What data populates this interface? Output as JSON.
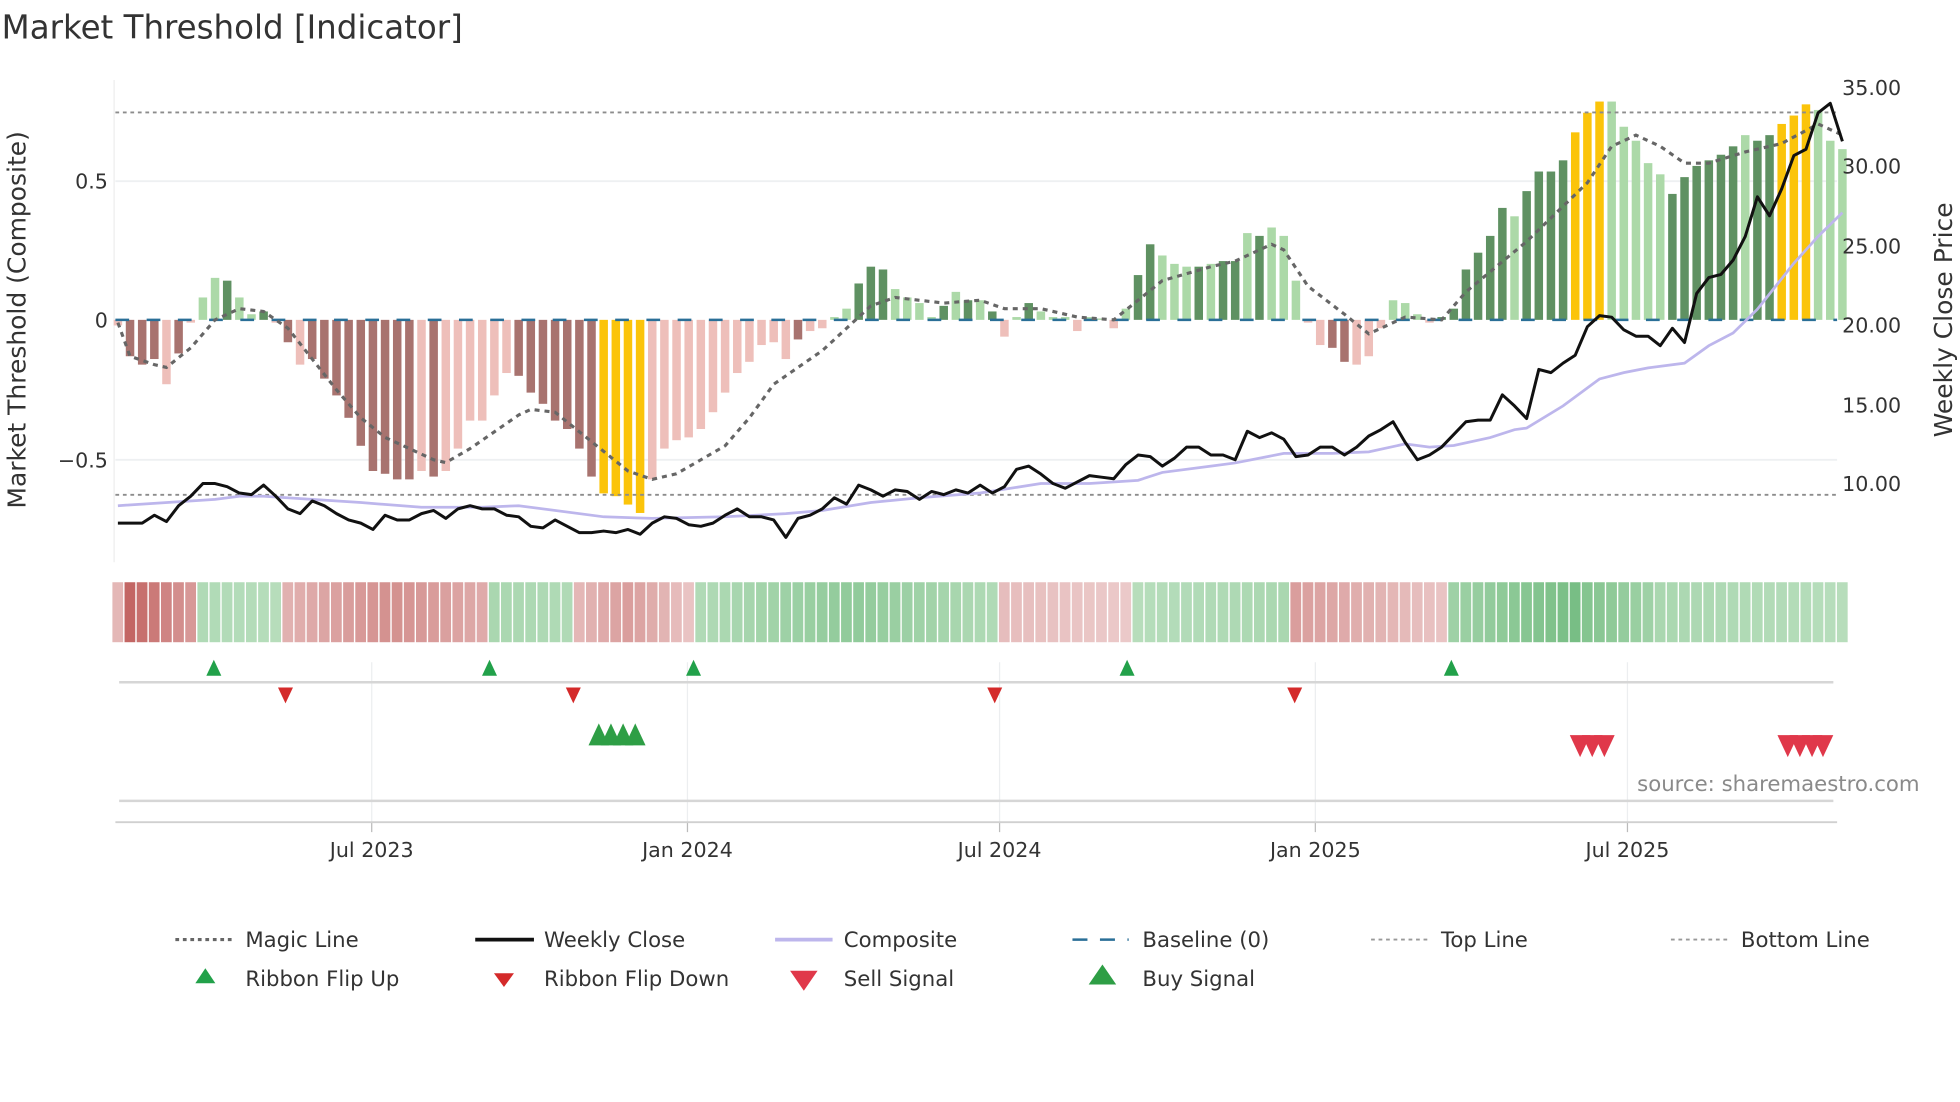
{
  "title": "Market Threshold [Indicator]",
  "source": "source: sharemaestro.com",
  "chart_data": {
    "type": "bar",
    "title": "Market Threshold [Indicator]",
    "ylabel_left": "Market Threshold (Composite)",
    "ylabel_right": "Weekly Close Price",
    "ylim_left": [
      -0.85,
      0.83
    ],
    "ylim_right": [
      4.4,
      36.6
    ],
    "left_ticks": [
      {
        "v": 0.5,
        "label": "0.5"
      },
      {
        "v": 0,
        "label": "0"
      },
      {
        "v": -0.5,
        "label": "−0.5"
      }
    ],
    "right_ticks": [
      {
        "v": 35,
        "label": "35.00"
      },
      {
        "v": 30,
        "label": "30.00"
      },
      {
        "v": 25,
        "label": "25.00"
      },
      {
        "v": 20,
        "label": "20.00"
      },
      {
        "v": 15,
        "label": "15.00"
      },
      {
        "v": 10,
        "label": "10.00"
      }
    ],
    "x_ticks": [
      {
        "week": 20.9,
        "label": "Jul 2023"
      },
      {
        "week": 46.9,
        "label": "Jan 2024"
      },
      {
        "week": 72.6,
        "label": "Jul 2024"
      },
      {
        "week": 98.6,
        "label": "Jan 2025"
      },
      {
        "week": 124.3,
        "label": "Jul 2025"
      }
    ],
    "top_line": 0.74,
    "bottom_line": -0.625,
    "baseline": 0,
    "colors": {
      "neg_dark": "#a8736f",
      "neg_light": "#eebfba",
      "pos_dark": "#5f9162",
      "pos_light": "#acd9a8",
      "peak": "#fbc40a",
      "magic": "#666666",
      "close": "#111111",
      "composite": "#bdb6ec",
      "baseline": "#2a6f97",
      "threshold": "#8c8c8c",
      "flip_up": "#22a14a",
      "flip_down": "#d42a2a",
      "buy": "#2e9e45",
      "sell": "#e0384a"
    },
    "bars": [
      -0.02,
      -0.13,
      -0.16,
      -0.14,
      -0.23,
      -0.12,
      -0.01,
      0.08,
      0.15,
      0.14,
      0.08,
      0.02,
      0.03,
      -0.01,
      -0.08,
      -0.16,
      -0.14,
      -0.21,
      -0.27,
      -0.35,
      -0.45,
      -0.54,
      -0.55,
      -0.57,
      -0.57,
      -0.54,
      -0.56,
      -0.54,
      -0.46,
      -0.36,
      -0.36,
      -0.27,
      -0.19,
      -0.2,
      -0.26,
      -0.3,
      -0.36,
      -0.39,
      -0.46,
      -0.56,
      -0.62,
      -0.63,
      -0.66,
      -0.69,
      -0.57,
      -0.46,
      -0.43,
      -0.42,
      -0.39,
      -0.33,
      -0.26,
      -0.19,
      -0.15,
      -0.09,
      -0.08,
      -0.14,
      -0.07,
      -0.04,
      -0.03,
      0.01,
      0.04,
      0.13,
      0.19,
      0.18,
      0.11,
      0.08,
      0.06,
      0.01,
      0.05,
      0.1,
      0.07,
      0.07,
      0.03,
      -0.06,
      0.01,
      0.06,
      0.03,
      0.01,
      0.01,
      -0.04,
      0.01,
      0.005,
      -0.03,
      0.04,
      0.16,
      0.27,
      0.23,
      0.2,
      0.19,
      0.19,
      0.2,
      0.21,
      0.21,
      0.31,
      0.3,
      0.33,
      0.3,
      0.14,
      -0.01,
      -0.09,
      -0.1,
      -0.15,
      -0.16,
      -0.13,
      -0.03,
      0.07,
      0.06,
      0.02,
      -0.01,
      0.01,
      0.04,
      0.18,
      0.24,
      0.3,
      0.4,
      0.37,
      0.46,
      0.53,
      0.53,
      0.57,
      0.67,
      0.74,
      0.78,
      0.78,
      0.69,
      0.64,
      0.56,
      0.52,
      0.45,
      0.51,
      0.55,
      0.57,
      0.59,
      0.62,
      0.66,
      0.64,
      0.66,
      0.7,
      0.73,
      0.77,
      0.75,
      0.64,
      0.61
    ],
    "bar_tone": "ldddldllldlldldldddddddddldlllllldddddddyyyylllllllllllldlllldddlllldldldlldllllllllddllldlddldlllllddlllllllddddddlddddyyylllllddddddlddyyyll",
    "weekly_close": [
      7.5,
      7.5,
      7.5,
      8.0,
      7.6,
      8.6,
      9.2,
      10.0,
      10.0,
      9.8,
      9.4,
      9.3,
      9.9,
      9.2,
      8.4,
      8.1,
      8.9,
      8.6,
      8.1,
      7.7,
      7.5,
      7.1,
      8.0,
      7.7,
      7.7,
      8.1,
      8.3,
      7.8,
      8.4,
      8.6,
      8.4,
      8.4,
      8.0,
      7.9,
      7.3,
      7.2,
      7.7,
      7.3,
      6.9,
      6.9,
      7.0,
      6.9,
      7.1,
      6.8,
      7.5,
      7.9,
      7.8,
      7.4,
      7.3,
      7.5,
      8.0,
      8.4,
      7.9,
      7.9,
      7.7,
      6.6,
      7.8,
      8.0,
      8.4,
      9.1,
      8.7,
      9.9,
      9.6,
      9.2,
      9.6,
      9.5,
      9.0,
      9.5,
      9.3,
      9.6,
      9.4,
      9.9,
      9.4,
      9.8,
      10.9,
      11.1,
      10.6,
      10.0,
      9.7,
      10.1,
      10.5,
      10.4,
      10.3,
      11.2,
      11.8,
      11.7,
      11.1,
      11.6,
      12.3,
      12.3,
      11.8,
      11.8,
      11.5,
      13.3,
      12.9,
      13.2,
      12.8,
      11.7,
      11.8,
      12.3,
      12.3,
      11.8,
      12.3,
      13.0,
      13.4,
      13.9,
      12.6,
      11.5,
      11.8,
      12.3,
      13.1,
      13.9,
      14.0,
      14.0,
      15.6,
      14.9,
      14.1,
      17.2,
      17.0,
      17.6,
      18.1,
      19.9,
      20.6,
      20.5,
      19.7,
      19.3,
      19.3,
      18.7,
      19.8,
      18.9,
      22.0,
      23.0,
      23.2,
      24.1,
      25.6,
      28.1,
      26.9,
      28.6,
      30.7,
      31.1,
      33.4,
      34.0,
      31.6
    ],
    "composite_line": [
      [
        0,
        8.6
      ],
      [
        8,
        9.0
      ],
      [
        10,
        9.2
      ],
      [
        12,
        9.2
      ],
      [
        20,
        8.8
      ],
      [
        25,
        8.5
      ],
      [
        30,
        8.5
      ],
      [
        33,
        8.6
      ],
      [
        40,
        7.9
      ],
      [
        44,
        7.8
      ],
      [
        50,
        7.9
      ],
      [
        55,
        8.1
      ],
      [
        58,
        8.3
      ],
      [
        62,
        8.8
      ],
      [
        66,
        9.1
      ],
      [
        71,
        9.4
      ],
      [
        76,
        10.0
      ],
      [
        80,
        10.0
      ],
      [
        84,
        10.2
      ],
      [
        86,
        10.7
      ],
      [
        90,
        11.1
      ],
      [
        92,
        11.3
      ],
      [
        96,
        11.9
      ],
      [
        100,
        11.9
      ],
      [
        103,
        12.0
      ],
      [
        106,
        12.5
      ],
      [
        108,
        12.3
      ],
      [
        110,
        12.4
      ],
      [
        113,
        12.9
      ],
      [
        115,
        13.4
      ],
      [
        116,
        13.5
      ],
      [
        119,
        14.9
      ],
      [
        122,
        16.6
      ],
      [
        124,
        17.0
      ],
      [
        126,
        17.3
      ],
      [
        129,
        17.6
      ],
      [
        131,
        18.7
      ],
      [
        133,
        19.5
      ],
      [
        135,
        21.0
      ],
      [
        138,
        23.9
      ],
      [
        140,
        25.6
      ],
      [
        142,
        27.1
      ]
    ],
    "magic_line": [
      [
        0,
        -0.01
      ],
      [
        1,
        -0.13
      ],
      [
        3,
        -0.16
      ],
      [
        4,
        -0.17
      ],
      [
        6,
        -0.1
      ],
      [
        8,
        0.0
      ],
      [
        10,
        0.04
      ],
      [
        12,
        0.03
      ],
      [
        14,
        -0.03
      ],
      [
        16,
        -0.14
      ],
      [
        18,
        -0.25
      ],
      [
        20,
        -0.35
      ],
      [
        22,
        -0.42
      ],
      [
        24,
        -0.46
      ],
      [
        26,
        -0.5
      ],
      [
        27,
        -0.51
      ],
      [
        29,
        -0.46
      ],
      [
        31,
        -0.4
      ],
      [
        33,
        -0.34
      ],
      [
        34,
        -0.32
      ],
      [
        36,
        -0.33
      ],
      [
        38,
        -0.4
      ],
      [
        40,
        -0.47
      ],
      [
        42,
        -0.54
      ],
      [
        44,
        -0.57
      ],
      [
        46,
        -0.55
      ],
      [
        48,
        -0.5
      ],
      [
        50,
        -0.45
      ],
      [
        52,
        -0.35
      ],
      [
        54,
        -0.23
      ],
      [
        56,
        -0.17
      ],
      [
        58,
        -0.11
      ],
      [
        60,
        -0.03
      ],
      [
        62,
        0.05
      ],
      [
        64,
        0.08
      ],
      [
        66,
        0.07
      ],
      [
        68,
        0.06
      ],
      [
        71,
        0.07
      ],
      [
        73,
        0.04
      ],
      [
        76,
        0.04
      ],
      [
        79,
        0.01
      ],
      [
        82,
        0.0
      ],
      [
        84,
        0.07
      ],
      [
        86,
        0.14
      ],
      [
        90,
        0.19
      ],
      [
        92,
        0.21
      ],
      [
        95,
        0.27
      ],
      [
        96,
        0.25
      ],
      [
        98,
        0.12
      ],
      [
        101,
        0.02
      ],
      [
        103,
        -0.05
      ],
      [
        106,
        0.01
      ],
      [
        109,
        0.0
      ],
      [
        111,
        0.1
      ],
      [
        116,
        0.28
      ],
      [
        121,
        0.49
      ],
      [
        123,
        0.62
      ],
      [
        125,
        0.66
      ],
      [
        127,
        0.62
      ],
      [
        129,
        0.56
      ],
      [
        131,
        0.56
      ],
      [
        134,
        0.6
      ],
      [
        137,
        0.63
      ],
      [
        140,
        0.7
      ],
      [
        142,
        0.66
      ]
    ],
    "ribbon": [
      {
        "from": 0,
        "to": 0,
        "v": [
          -0.3,
          -0.3
        ]
      },
      {
        "from": 1,
        "to": 6,
        "v": [
          -0.95,
          -0.55
        ]
      },
      {
        "from": 7,
        "to": 13,
        "v": [
          0.35,
          0.3
        ]
      },
      {
        "from": 14,
        "to": 22,
        "v": [
          -0.35,
          -0.6
        ]
      },
      {
        "from": 23,
        "to": 30,
        "v": [
          -0.6,
          -0.4
        ]
      },
      {
        "from": 31,
        "to": 37,
        "v": [
          0.4,
          0.35
        ]
      },
      {
        "from": 38,
        "to": 42,
        "v": [
          -0.3,
          -0.5
        ]
      },
      {
        "from": 43,
        "to": 47,
        "v": [
          -0.45,
          -0.2
        ]
      },
      {
        "from": 48,
        "to": 60,
        "v": [
          0.35,
          0.6
        ]
      },
      {
        "from": 61,
        "to": 72,
        "v": [
          0.6,
          0.35
        ]
      },
      {
        "from": 73,
        "to": 83,
        "v": [
          -0.25,
          -0.15
        ]
      },
      {
        "from": 84,
        "to": 96,
        "v": [
          0.3,
          0.4
        ]
      },
      {
        "from": 97,
        "to": 109,
        "v": [
          -0.5,
          -0.2
        ]
      },
      {
        "from": 110,
        "to": 120,
        "v": [
          0.5,
          0.8
        ]
      },
      {
        "from": 121,
        "to": 126,
        "v": [
          0.7,
          0.5
        ]
      },
      {
        "from": 127,
        "to": 142,
        "v": [
          0.4,
          0.3
        ]
      }
    ],
    "ribbon_flip_up": [
      7.9,
      30.6,
      47.4,
      83.1,
      109.8
    ],
    "ribbon_flip_down": [
      13.8,
      37.5,
      72.2,
      96.9
    ],
    "buy_signals": [
      39.6,
      40.6,
      41.6,
      42.6
    ],
    "sell_signals": [
      120.4,
      121.4,
      122.4,
      137.5,
      138.5,
      139.5,
      140.4
    ],
    "legend": [
      {
        "label": "Magic Line",
        "marker": "dotted-line"
      },
      {
        "label": "Weekly Close",
        "marker": "solid-line"
      },
      {
        "label": "Composite",
        "marker": "solid-line"
      },
      {
        "label": "Baseline (0)",
        "marker": "dashed-line"
      },
      {
        "label": "Top Line",
        "marker": "dotted-line"
      },
      {
        "label": "Bottom Line",
        "marker": "dotted-line"
      },
      {
        "label": "Ribbon Flip Up",
        "marker": "triangle-up"
      },
      {
        "label": "Ribbon Flip Down",
        "marker": "triangle-down"
      },
      {
        "label": "Sell Signal",
        "marker": "triangle-down"
      },
      {
        "label": "Buy Signal",
        "marker": "triangle-up"
      }
    ],
    "legend_placement": "bottom"
  }
}
